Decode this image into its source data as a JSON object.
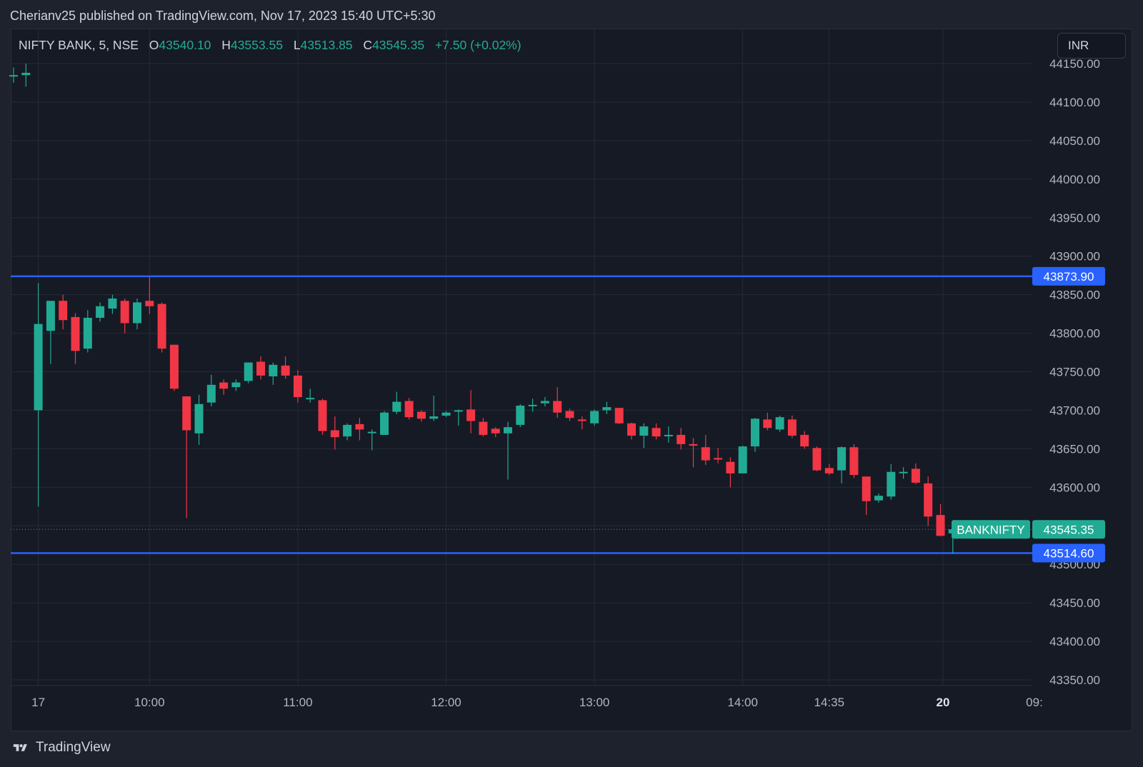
{
  "header": {
    "published_text": "Cherianv25 published on TradingView.com, Nov 17, 2023 15:40 UTC+5:30"
  },
  "legend": {
    "symbol": "NIFTY BANK, 5, NSE",
    "open_label": "O",
    "open": "43540.10",
    "high_label": "H",
    "high": "43553.55",
    "low_label": "L",
    "low": "43513.85",
    "close_label": "C",
    "close": "43545.35",
    "change": "+7.50 (+0.02%)"
  },
  "currency_button": {
    "label": "INR"
  },
  "footer": {
    "brand": "TradingView"
  },
  "colors": {
    "background": "#161a25",
    "up": "#22ab94",
    "down": "#f23645",
    "horizontal_line": "#2962ff",
    "grid": "#262a35",
    "text": "#d1d4dc"
  },
  "chart_data": {
    "type": "candlestick",
    "symbol": "BANKNIFTY",
    "timeframe": "5",
    "ylim": [
      43330,
      44170
    ],
    "y_ticks": [
      "44150.00",
      "44100.00",
      "44050.00",
      "44000.00",
      "43950.00",
      "43900.00",
      "43850.00",
      "43800.00",
      "43750.00",
      "43700.00",
      "43650.00",
      "43600.00",
      "43550.00",
      "43500.00",
      "43450.00",
      "43400.00",
      "43350.00"
    ],
    "x_tick_labels": [
      "17",
      "10:00",
      "11:00",
      "12:00",
      "13:00",
      "14:00",
      "14:35",
      "20",
      "09:"
    ],
    "horizontal_lines": [
      {
        "value": 43873.9,
        "label": "43873.90"
      },
      {
        "value": 43514.6,
        "label": "43514.60"
      }
    ],
    "last_price": {
      "value": 43545.35,
      "label": "43545.35",
      "symbol_label": "BANKNIFTY"
    },
    "candles": [
      {
        "o": 44135,
        "h": 44145,
        "l": 44125,
        "c": 44135
      },
      {
        "o": 44135,
        "h": 44150,
        "l": 44120,
        "c": 44138
      },
      {
        "o": 43700,
        "h": 43865,
        "l": 43575,
        "c": 43812
      },
      {
        "o": 43803,
        "h": 43835,
        "l": 43760,
        "c": 43842
      },
      {
        "o": 43842,
        "h": 43850,
        "l": 43805,
        "c": 43817
      },
      {
        "o": 43821,
        "h": 43826,
        "l": 43760,
        "c": 43777
      },
      {
        "o": 43780,
        "h": 43830,
        "l": 43775,
        "c": 43820
      },
      {
        "o": 43820,
        "h": 43840,
        "l": 43815,
        "c": 43835
      },
      {
        "o": 43832,
        "h": 43850,
        "l": 43825,
        "c": 43845
      },
      {
        "o": 43842,
        "h": 43845,
        "l": 43800,
        "c": 43813
      },
      {
        "o": 43813,
        "h": 43845,
        "l": 43805,
        "c": 43840
      },
      {
        "o": 43842,
        "h": 43873,
        "l": 43825,
        "c": 43835
      },
      {
        "o": 43838,
        "h": 43840,
        "l": 43775,
        "c": 43780
      },
      {
        "o": 43785,
        "h": 43785,
        "l": 43725,
        "c": 43728
      },
      {
        "o": 43718,
        "h": 43718,
        "l": 43560,
        "c": 43674
      },
      {
        "o": 43670,
        "h": 43720,
        "l": 43655,
        "c": 43708
      },
      {
        "o": 43710,
        "h": 43746,
        "l": 43705,
        "c": 43733
      },
      {
        "o": 43736,
        "h": 43740,
        "l": 43720,
        "c": 43728
      },
      {
        "o": 43730,
        "h": 43740,
        "l": 43725,
        "c": 43736
      },
      {
        "o": 43738,
        "h": 43762,
        "l": 43735,
        "c": 43762
      },
      {
        "o": 43763,
        "h": 43770,
        "l": 43740,
        "c": 43745
      },
      {
        "o": 43744,
        "h": 43762,
        "l": 43733,
        "c": 43759
      },
      {
        "o": 43758,
        "h": 43770,
        "l": 43741,
        "c": 43745
      },
      {
        "o": 43745,
        "h": 43752,
        "l": 43710,
        "c": 43717
      },
      {
        "o": 43715,
        "h": 43728,
        "l": 43710,
        "c": 43716
      },
      {
        "o": 43713,
        "h": 43715,
        "l": 43668,
        "c": 43673
      },
      {
        "o": 43674,
        "h": 43692,
        "l": 43649,
        "c": 43665
      },
      {
        "o": 43666,
        "h": 43683,
        "l": 43661,
        "c": 43681
      },
      {
        "o": 43682,
        "h": 43690,
        "l": 43661,
        "c": 43675
      },
      {
        "o": 43672,
        "h": 43675,
        "l": 43648,
        "c": 43672
      },
      {
        "o": 43668,
        "h": 43699,
        "l": 43668,
        "c": 43697
      },
      {
        "o": 43698,
        "h": 43724,
        "l": 43695,
        "c": 43711
      },
      {
        "o": 43712,
        "h": 43716,
        "l": 43688,
        "c": 43691
      },
      {
        "o": 43698,
        "h": 43700,
        "l": 43685,
        "c": 43689
      },
      {
        "o": 43689,
        "h": 43719,
        "l": 43686,
        "c": 43692
      },
      {
        "o": 43693,
        "h": 43699,
        "l": 43691,
        "c": 43697
      },
      {
        "o": 43699,
        "h": 43701,
        "l": 43680,
        "c": 43700
      },
      {
        "o": 43701,
        "h": 43726,
        "l": 43670,
        "c": 43686
      },
      {
        "o": 43685,
        "h": 43690,
        "l": 43666,
        "c": 43668
      },
      {
        "o": 43676,
        "h": 43678,
        "l": 43665,
        "c": 43670
      },
      {
        "o": 43670,
        "h": 43685,
        "l": 43610,
        "c": 43678
      },
      {
        "o": 43681,
        "h": 43708,
        "l": 43678,
        "c": 43706
      },
      {
        "o": 43707,
        "h": 43715,
        "l": 43698,
        "c": 43707
      },
      {
        "o": 43709,
        "h": 43717,
        "l": 43705,
        "c": 43712
      },
      {
        "o": 43712,
        "h": 43730,
        "l": 43690,
        "c": 43697
      },
      {
        "o": 43699,
        "h": 43702,
        "l": 43686,
        "c": 43690
      },
      {
        "o": 43688,
        "h": 43692,
        "l": 43675,
        "c": 43686
      },
      {
        "o": 43683,
        "h": 43701,
        "l": 43680,
        "c": 43699
      },
      {
        "o": 43700,
        "h": 43711,
        "l": 43695,
        "c": 43704
      },
      {
        "o": 43703,
        "h": 43703,
        "l": 43682,
        "c": 43683
      },
      {
        "o": 43683,
        "h": 43684,
        "l": 43662,
        "c": 43667
      },
      {
        "o": 43667,
        "h": 43683,
        "l": 43651,
        "c": 43679
      },
      {
        "o": 43677,
        "h": 43683,
        "l": 43662,
        "c": 43666
      },
      {
        "o": 43667,
        "h": 43679,
        "l": 43658,
        "c": 43668
      },
      {
        "o": 43668,
        "h": 43677,
        "l": 43649,
        "c": 43656
      },
      {
        "o": 43656,
        "h": 43664,
        "l": 43626,
        "c": 43654
      },
      {
        "o": 43652,
        "h": 43668,
        "l": 43629,
        "c": 43635
      },
      {
        "o": 43638,
        "h": 43651,
        "l": 43631,
        "c": 43636
      },
      {
        "o": 43633,
        "h": 43639,
        "l": 43600,
        "c": 43618
      },
      {
        "o": 43618,
        "h": 43654,
        "l": 43618,
        "c": 43653
      },
      {
        "o": 43653,
        "h": 43690,
        "l": 43646,
        "c": 43689
      },
      {
        "o": 43688,
        "h": 43697,
        "l": 43674,
        "c": 43677
      },
      {
        "o": 43675,
        "h": 43693,
        "l": 43672,
        "c": 43691
      },
      {
        "o": 43688,
        "h": 43693,
        "l": 43664,
        "c": 43667
      },
      {
        "o": 43668,
        "h": 43673,
        "l": 43650,
        "c": 43653
      },
      {
        "o": 43651,
        "h": 43653,
        "l": 43621,
        "c": 43622
      },
      {
        "o": 43625,
        "h": 43630,
        "l": 43616,
        "c": 43618
      },
      {
        "o": 43622,
        "h": 43653,
        "l": 43605,
        "c": 43652
      },
      {
        "o": 43652,
        "h": 43656,
        "l": 43612,
        "c": 43616
      },
      {
        "o": 43614,
        "h": 43614,
        "l": 43564,
        "c": 43582
      },
      {
        "o": 43583,
        "h": 43592,
        "l": 43580,
        "c": 43589
      },
      {
        "o": 43588,
        "h": 43630,
        "l": 43584,
        "c": 43620
      },
      {
        "o": 43619,
        "h": 43626,
        "l": 43611,
        "c": 43620
      },
      {
        "o": 43624,
        "h": 43631,
        "l": 43604,
        "c": 43606
      },
      {
        "o": 43605,
        "h": 43614,
        "l": 43550,
        "c": 43562
      },
      {
        "o": 43564,
        "h": 43578,
        "l": 43536,
        "c": 43537
      },
      {
        "o": 43540.1,
        "h": 43553.55,
        "l": 43513.85,
        "c": 43545.35
      }
    ]
  }
}
